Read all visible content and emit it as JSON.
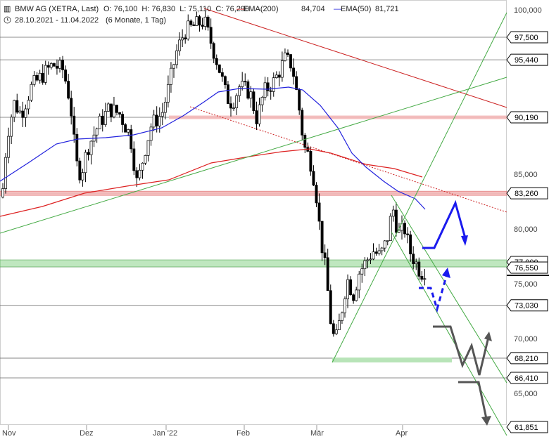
{
  "header": {
    "title": "BMW AG (XETRA, Last)",
    "ohlc": "O: 76,100  H: 76,830  L: 75,110  C: 76,290",
    "ema200_label": "EMA(200)",
    "ema200_value": "84,704",
    "ema50_label": "EMA(50)",
    "ema50_value": "81,721",
    "range": "28.10.2021 - 11.04.2022",
    "period": "(6 Monate, 1 Tag)"
  },
  "colors": {
    "ema200": "#dd2222",
    "ema50": "#2222dd",
    "trend_green": "#44aa44",
    "zone_red": "#f4b8b8",
    "zone_green": "#b8e4b8",
    "projection_blue": "#1a1aee",
    "projection_gray": "#555555"
  },
  "chart_data": {
    "type": "candlestick",
    "x_ticks": [
      "Nov",
      "Dez",
      "Jan '22",
      "Feb",
      "Mär",
      "Apr"
    ],
    "y_ticks": [
      "65,000",
      "70,000",
      "75,000",
      "80,000",
      "85,000",
      "100,000"
    ],
    "ylim": [
      61,
      101
    ],
    "levels": [
      "97,500",
      "95,440",
      "90,190",
      "83,260",
      "77,000",
      "76,550",
      "73,030",
      "68,210",
      "66,410",
      "61,851"
    ],
    "series": [
      {
        "name": "EMA(200)",
        "value": 84.704
      },
      {
        "name": "EMA(50)",
        "value": 81.721
      }
    ],
    "last": {
      "open": 76.1,
      "high": 76.83,
      "low": 75.11,
      "close": 76.29
    }
  }
}
